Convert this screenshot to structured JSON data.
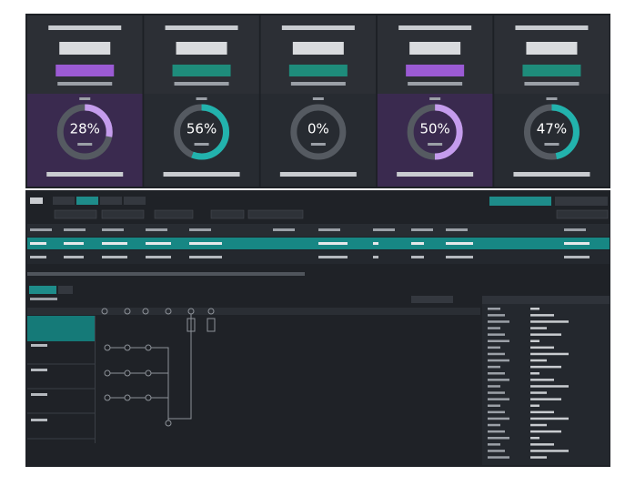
{
  "gauges": [
    {
      "value": 28,
      "label": "28%",
      "color": "#c59ced",
      "accent": "#9b5bd4",
      "panel": "#3a2a4f"
    },
    {
      "value": 56,
      "label": "56%",
      "color": "#22b3ad",
      "accent": "#1e8c7b",
      "panel": "#272b31"
    },
    {
      "value": 0,
      "label": "0%",
      "color": "#22b3ad",
      "accent": "#1e8c7b",
      "panel": "#272b31"
    },
    {
      "value": 50,
      "label": "50%",
      "color": "#c59ced",
      "accent": "#9b5bd4",
      "panel": "#3a2a4f"
    },
    {
      "value": 47,
      "label": "47%",
      "color": "#22b3ad",
      "accent": "#1e8c7b",
      "panel": "#272b31"
    }
  ]
}
